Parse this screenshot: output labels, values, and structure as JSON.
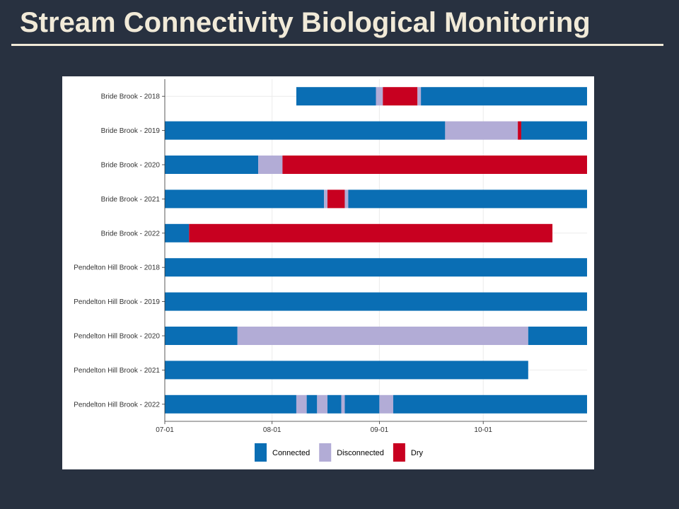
{
  "slide": {
    "title": "Stream Connectivity Biological Monitoring"
  },
  "chart_data": {
    "type": "bar",
    "orientation": "horizontal-timeline",
    "title": "",
    "xlabel": "",
    "ylabel": "",
    "x_axis": {
      "type": "date",
      "range": [
        "2000-07-01",
        "2000-10-31"
      ],
      "ticks": [
        {
          "date": "2000-07-01",
          "label": "07-01"
        },
        {
          "date": "2000-08-01",
          "label": "08-01"
        },
        {
          "date": "2000-09-01",
          "label": "09-01"
        },
        {
          "date": "2000-10-01",
          "label": "10-01"
        }
      ]
    },
    "grid": true,
    "legend": {
      "position": "bottom",
      "items": [
        {
          "key": "Connected",
          "label": "Connected",
          "color": "#0a6eb4"
        },
        {
          "key": "Disconnected",
          "label": "Disconnected",
          "color": "#b2acd6"
        },
        {
          "key": "Dry",
          "label": "Dry",
          "color": "#c80020"
        }
      ]
    },
    "categories": [
      "Bride Brook - 2018",
      "Bride Brook - 2019",
      "Bride Brook - 2020",
      "Bride Brook - 2021",
      "Bride Brook - 2022",
      "Pendelton Hill Brook - 2018",
      "Pendelton Hill Brook - 2019",
      "Pendelton Hill Brook - 2020",
      "Pendelton Hill Brook - 2021",
      "Pendelton Hill Brook - 2022"
    ],
    "rows": [
      {
        "label": "Bride Brook - 2018",
        "segments": [
          {
            "state": "Connected",
            "start": "2000-08-08",
            "end": "2000-08-31"
          },
          {
            "state": "Disconnected",
            "start": "2000-08-31",
            "end": "2000-09-02"
          },
          {
            "state": "Dry",
            "start": "2000-09-02",
            "end": "2000-09-12"
          },
          {
            "state": "Disconnected",
            "start": "2000-09-12",
            "end": "2000-09-13"
          },
          {
            "state": "Connected",
            "start": "2000-09-13",
            "end": "2000-10-31"
          }
        ]
      },
      {
        "label": "Bride Brook - 2019",
        "segments": [
          {
            "state": "Connected",
            "start": "2000-07-01",
            "end": "2000-09-20"
          },
          {
            "state": "Disconnected",
            "start": "2000-09-20",
            "end": "2000-10-11"
          },
          {
            "state": "Dry",
            "start": "2000-10-11",
            "end": "2000-10-12"
          },
          {
            "state": "Connected",
            "start": "2000-10-12",
            "end": "2000-10-31"
          }
        ]
      },
      {
        "label": "Bride Brook - 2020",
        "segments": [
          {
            "state": "Connected",
            "start": "2000-07-01",
            "end": "2000-07-28"
          },
          {
            "state": "Disconnected",
            "start": "2000-07-28",
            "end": "2000-08-04"
          },
          {
            "state": "Dry",
            "start": "2000-08-04",
            "end": "2000-10-31"
          }
        ]
      },
      {
        "label": "Bride Brook - 2021",
        "segments": [
          {
            "state": "Connected",
            "start": "2000-07-01",
            "end": "2000-08-16"
          },
          {
            "state": "Disconnected",
            "start": "2000-08-16",
            "end": "2000-08-17"
          },
          {
            "state": "Dry",
            "start": "2000-08-17",
            "end": "2000-08-22"
          },
          {
            "state": "Disconnected",
            "start": "2000-08-22",
            "end": "2000-08-23"
          },
          {
            "state": "Connected",
            "start": "2000-08-23",
            "end": "2000-10-31"
          }
        ]
      },
      {
        "label": "Bride Brook - 2022",
        "segments": [
          {
            "state": "Connected",
            "start": "2000-07-01",
            "end": "2000-07-08"
          },
          {
            "state": "Dry",
            "start": "2000-07-08",
            "end": "2000-10-21"
          }
        ]
      },
      {
        "label": "Pendelton Hill Brook - 2018",
        "segments": [
          {
            "state": "Connected",
            "start": "2000-07-01",
            "end": "2000-10-31"
          }
        ]
      },
      {
        "label": "Pendelton Hill Brook - 2019",
        "segments": [
          {
            "state": "Connected",
            "start": "2000-07-01",
            "end": "2000-10-31"
          }
        ]
      },
      {
        "label": "Pendelton Hill Brook - 2020",
        "segments": [
          {
            "state": "Connected",
            "start": "2000-07-01",
            "end": "2000-07-22"
          },
          {
            "state": "Disconnected",
            "start": "2000-07-22",
            "end": "2000-10-14"
          },
          {
            "state": "Connected",
            "start": "2000-10-14",
            "end": "2000-10-31"
          }
        ]
      },
      {
        "label": "Pendelton Hill Brook - 2021",
        "segments": [
          {
            "state": "Connected",
            "start": "2000-07-01",
            "end": "2000-10-14"
          }
        ]
      },
      {
        "label": "Pendelton Hill Brook - 2022",
        "segments": [
          {
            "state": "Connected",
            "start": "2000-07-01",
            "end": "2000-08-08"
          },
          {
            "state": "Disconnected",
            "start": "2000-08-08",
            "end": "2000-08-11"
          },
          {
            "state": "Connected",
            "start": "2000-08-11",
            "end": "2000-08-14"
          },
          {
            "state": "Disconnected",
            "start": "2000-08-14",
            "end": "2000-08-17"
          },
          {
            "state": "Connected",
            "start": "2000-08-17",
            "end": "2000-08-21"
          },
          {
            "state": "Disconnected",
            "start": "2000-08-21",
            "end": "2000-08-22"
          },
          {
            "state": "Connected",
            "start": "2000-08-22",
            "end": "2000-09-01"
          },
          {
            "state": "Disconnected",
            "start": "2000-09-01",
            "end": "2000-09-05"
          },
          {
            "state": "Connected",
            "start": "2000-09-05",
            "end": "2000-10-31"
          }
        ]
      }
    ]
  }
}
